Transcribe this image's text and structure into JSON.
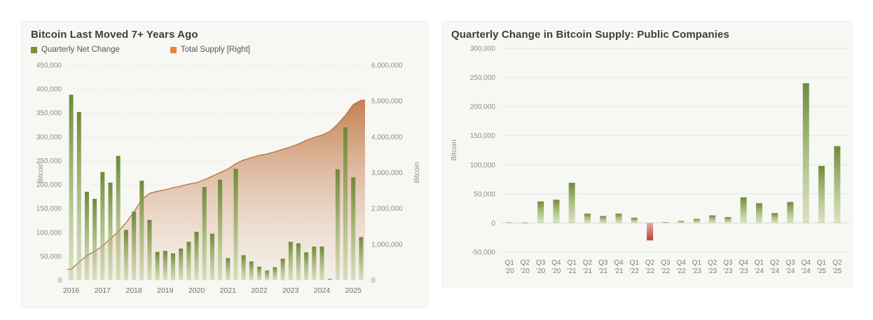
{
  "chart_data": [
    {
      "id": "btc-last-moved",
      "type": "bar+area",
      "title": "Bitcoin Last Moved 7+ Years Ago",
      "legend": [
        {
          "label": "Quarterly Net Change",
          "color": "#76903f"
        },
        {
          "label": "Total Supply [Right]",
          "color": "#e0873e"
        }
      ],
      "x": [
        "2016 Q1",
        "2016 Q2",
        "2016 Q3",
        "2016 Q4",
        "2017 Q1",
        "2017 Q2",
        "2017 Q3",
        "2017 Q4",
        "2018 Q1",
        "2018 Q2",
        "2018 Q3",
        "2018 Q4",
        "2019 Q1",
        "2019 Q2",
        "2019 Q3",
        "2019 Q4",
        "2020 Q1",
        "2020 Q2",
        "2020 Q3",
        "2020 Q4",
        "2021 Q1",
        "2021 Q2",
        "2021 Q3",
        "2021 Q4",
        "2022 Q1",
        "2022 Q2",
        "2022 Q3",
        "2022 Q4",
        "2023 Q1",
        "2023 Q2",
        "2023 Q3",
        "2023 Q4",
        "2024 Q1",
        "2024 Q2",
        "2024 Q3",
        "2024 Q4",
        "2025 Q1",
        "2025 Q2"
      ],
      "x_tick_labels": [
        "2016",
        "2017",
        "2018",
        "2019",
        "2020",
        "2021",
        "2022",
        "2023",
        "2024",
        "2025"
      ],
      "series": [
        {
          "name": "Quarterly Net Change",
          "type": "bar",
          "axis": "left",
          "values": [
            388000,
            352000,
            185000,
            170000,
            226000,
            204000,
            260000,
            105000,
            143000,
            208000,
            126000,
            59000,
            61000,
            56000,
            66000,
            80000,
            101000,
            195000,
            97000,
            210000,
            46000,
            233000,
            52000,
            39000,
            28000,
            20000,
            27000,
            45000,
            80000,
            77000,
            58000,
            70000,
            70000,
            3000,
            232000,
            320000,
            215000,
            90000
          ]
        },
        {
          "name": "Total Supply [Right]",
          "type": "area",
          "axis": "right",
          "values": [
            300000,
            500000,
            680000,
            800000,
            950000,
            1150000,
            1350000,
            1600000,
            1900000,
            2250000,
            2420000,
            2480000,
            2520000,
            2580000,
            2620000,
            2680000,
            2720000,
            2800000,
            2900000,
            3000000,
            3100000,
            3250000,
            3350000,
            3420000,
            3480000,
            3520000,
            3580000,
            3650000,
            3720000,
            3800000,
            3900000,
            3980000,
            4050000,
            4150000,
            4350000,
            4600000,
            4900000,
            5020000
          ]
        }
      ],
      "left_axis": {
        "label": "Bitcoin",
        "range": [
          0,
          450000
        ],
        "tick_step": 50000,
        "tick_labels": [
          "0",
          "50,000",
          "100,000",
          "150,000",
          "200,000",
          "250,000",
          "300,000",
          "350,000",
          "400,000",
          "450,000"
        ]
      },
      "right_axis": {
        "label": "Bitcoin",
        "range": [
          0,
          6000000
        ],
        "tick_step": 1000000,
        "tick_labels": [
          "0",
          "1,000,000",
          "2,000,000",
          "3,000,000",
          "4,000,000",
          "5,000,000",
          "6,000,000"
        ]
      },
      "colors": {
        "bar_top": "#6e8a38",
        "bar_bottom": "#a9c176",
        "area_top": "#bd6f3a",
        "area_bottom": "#e8cbb5",
        "area_edge": "#b8703c"
      },
      "grid": true,
      "legend_position": "top-left"
    },
    {
      "id": "public-companies-quarterly-change",
      "type": "bar",
      "title": "Quarterly Change in Bitcoin Supply: Public Companies",
      "categories": [
        "Q1 '20",
        "Q2 '20",
        "Q3 '20",
        "Q4 '20",
        "Q1 '21",
        "Q2 '21",
        "Q3 '21",
        "Q4 '21",
        "Q1 '22",
        "Q2 '22",
        "Q3 '22",
        "Q4 '22",
        "Q1 '23",
        "Q2 '23",
        "Q3 '23",
        "Q4 '23",
        "Q1 '24",
        "Q2 '24",
        "Q3 '24",
        "Q4 '24",
        "Q1 '25",
        "Q2 '25"
      ],
      "values": [
        1000,
        500,
        37000,
        40000,
        69000,
        16000,
        12000,
        16000,
        9000,
        -30000,
        1500,
        3500,
        7000,
        13000,
        10000,
        44000,
        34000,
        17000,
        36000,
        240000,
        98000,
        132000
      ],
      "ylabel": "Bitcoin",
      "ylim": [
        -50000,
        300000
      ],
      "y_axis": {
        "label": "Bitcoin",
        "tick_step": 50000,
        "tick_labels": [
          "-50,000",
          "0",
          "50,000",
          "100,000",
          "150,000",
          "200,000",
          "250,000",
          "300,000"
        ]
      },
      "colors": {
        "positive_top": "#6e8a38",
        "positive_bottom": "#a9c176",
        "negative_light": "#d9a096",
        "negative_dark": "#bd4133"
      },
      "grid": true
    }
  ]
}
